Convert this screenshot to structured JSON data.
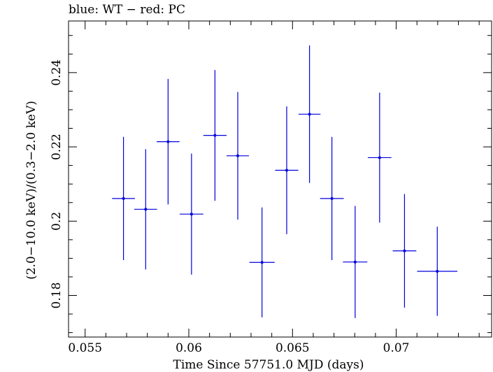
{
  "chart_data": {
    "type": "scatter",
    "title": "blue: WT − red: PC",
    "xlabel": "Time Since 57751.0 MJD (days)",
    "ylabel": "(2.0−10.0 keV)/(0.3−2.0 keV)",
    "xlim": [
      0.0542,
      0.0746
    ],
    "ylim": [
      0.1688,
      0.2539
    ],
    "x_ticks": [
      {
        "value": 0.055,
        "label": "0.055"
      },
      {
        "value": 0.06,
        "label": "0.06"
      },
      {
        "value": 0.065,
        "label": "0.065"
      },
      {
        "value": 0.07,
        "label": "0.07"
      }
    ],
    "y_ticks": [
      {
        "value": 0.18,
        "label": "0.18"
      },
      {
        "value": 0.2,
        "label": "0.2"
      },
      {
        "value": 0.22,
        "label": "0.22"
      },
      {
        "value": 0.24,
        "label": "0.24"
      }
    ],
    "grid": false,
    "series": [
      {
        "name": "WT",
        "color": "#0000dd",
        "points": [
          {
            "x": 0.05685,
            "y": 0.2061,
            "xerr": 0.00055,
            "yerr": 0.0166
          },
          {
            "x": 0.05792,
            "y": 0.2032,
            "xerr": 0.00055,
            "yerr": 0.0162
          },
          {
            "x": 0.059,
            "y": 0.2214,
            "xerr": 0.00055,
            "yerr": 0.0169
          },
          {
            "x": 0.06013,
            "y": 0.2019,
            "xerr": 0.00057,
            "yerr": 0.0163
          },
          {
            "x": 0.06126,
            "y": 0.2231,
            "xerr": 0.00056,
            "yerr": 0.0176
          },
          {
            "x": 0.06236,
            "y": 0.2176,
            "xerr": 0.00054,
            "yerr": 0.0172
          },
          {
            "x": 0.06353,
            "y": 0.1889,
            "xerr": 0.00061,
            "yerr": 0.0148
          },
          {
            "x": 0.06472,
            "y": 0.2137,
            "xerr": 0.00056,
            "yerr": 0.0172
          },
          {
            "x": 0.06582,
            "y": 0.2288,
            "xerr": 0.00053,
            "yerr": 0.0185
          },
          {
            "x": 0.0669,
            "y": 0.2061,
            "xerr": 0.00057,
            "yerr": 0.0166
          },
          {
            "x": 0.06802,
            "y": 0.189,
            "xerr": 0.00059,
            "yerr": 0.0151
          },
          {
            "x": 0.0692,
            "y": 0.2171,
            "xerr": 0.00057,
            "yerr": 0.0175
          },
          {
            "x": 0.0704,
            "y": 0.192,
            "xerr": 0.00057,
            "yerr": 0.0153
          },
          {
            "x": 0.07198,
            "y": 0.1865,
            "xerr": 0.00097,
            "yerr": 0.012
          }
        ]
      }
    ]
  }
}
